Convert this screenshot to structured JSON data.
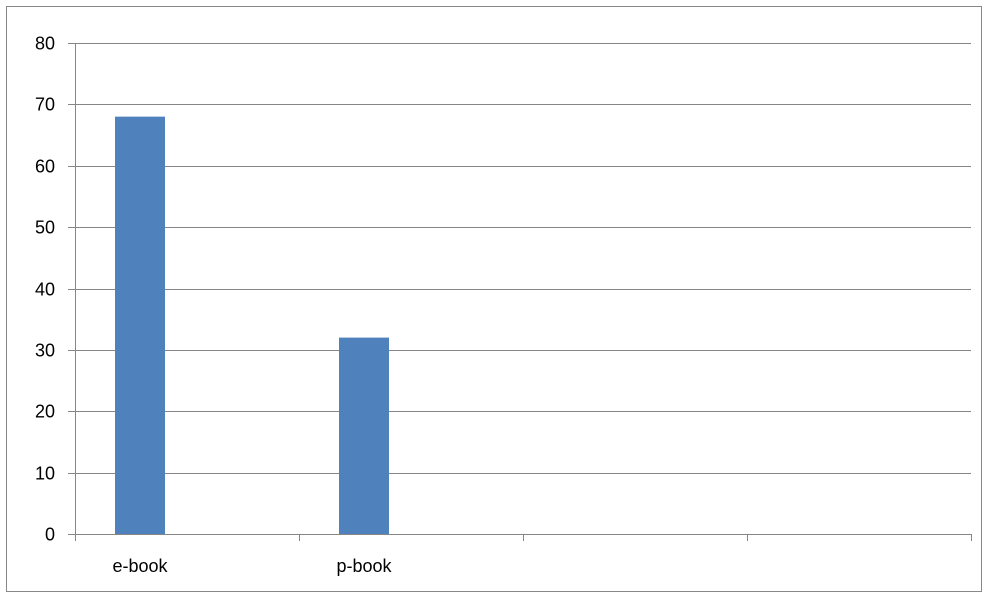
{
  "chart_data": {
    "type": "bar",
    "categories": [
      "e-book",
      "p-book",
      "",
      ""
    ],
    "values": [
      68,
      32,
      null,
      null
    ],
    "ylim": [
      0,
      80
    ],
    "yticks": [
      0,
      10,
      20,
      30,
      40,
      50,
      60,
      70,
      80
    ],
    "grid": true,
    "legend": "none",
    "bar_color": "#4f81bd",
    "gridline_color": "#868686"
  }
}
